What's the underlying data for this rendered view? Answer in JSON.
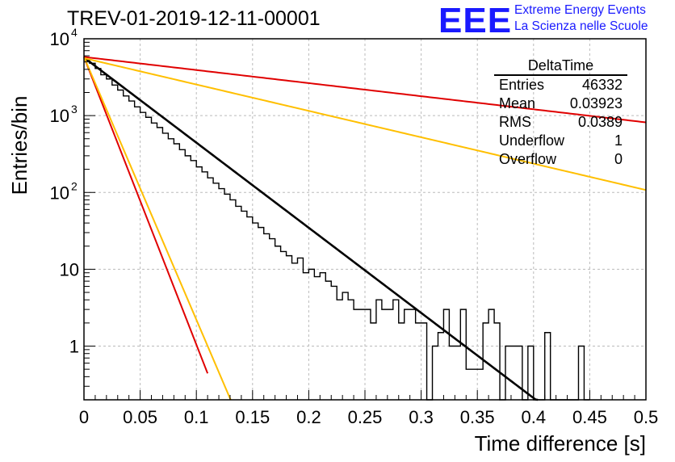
{
  "title": "TREV-01-2019-12-11-00001",
  "logo": {
    "mark": "EEE",
    "line1": "Extreme Energy Events",
    "line2": "La Scienza nelle Scuole",
    "color": "#1a1aff"
  },
  "stats_box": {
    "name": "DeltaTime",
    "rows": [
      {
        "label": "Entries",
        "value": "46332"
      },
      {
        "label": "Mean",
        "value": "0.03923"
      },
      {
        "label": "RMS",
        "value": "0.0389"
      },
      {
        "label": "Underflow",
        "value": "1"
      },
      {
        "label": "Overflow",
        "value": "0"
      }
    ]
  },
  "chart_data": {
    "type": "line",
    "title": "TREV-01-2019-12-11-00001",
    "xlabel": "Time difference [s]",
    "ylabel": "Entries/bin",
    "xlim": [
      0,
      0.5
    ],
    "ylim": [
      0.2,
      10000
    ],
    "yscale": "log",
    "grid": true,
    "legend": "top-right",
    "xticks": [
      "0",
      "0.05",
      "0.1",
      "0.15",
      "0.2",
      "0.25",
      "0.3",
      "0.35",
      "0.4",
      "0.45",
      "0.5"
    ],
    "yticks": [
      {
        "value": 1,
        "label": "1"
      },
      {
        "value": 10,
        "label": "10"
      },
      {
        "value": 100,
        "label": "10",
        "sup": "2"
      },
      {
        "value": 1000,
        "label": "10",
        "sup": "3"
      },
      {
        "value": 10000,
        "label": "10",
        "sup": "4"
      }
    ],
    "histogram": {
      "name": "DeltaTime",
      "color": "#000000",
      "bin_width": 0.005,
      "x_start": 0,
      "values": [
        5400,
        4800,
        4100,
        3400,
        3000,
        2500,
        2150,
        1800,
        1550,
        1300,
        1100,
        950,
        800,
        700,
        590,
        500,
        430,
        360,
        300,
        260,
        215,
        185,
        155,
        132,
        112,
        95,
        80,
        66,
        57,
        48,
        40,
        35,
        29,
        25,
        20,
        17,
        15,
        12,
        14,
        9,
        10,
        8,
        9,
        7,
        6,
        4,
        5,
        4,
        3,
        3,
        3,
        2,
        4,
        3,
        3,
        4,
        2,
        3,
        3,
        2,
        2,
        0,
        1,
        1.5,
        3,
        1,
        1,
        3,
        0.5,
        0.5,
        0.5,
        2,
        3,
        2,
        0.1,
        1,
        1,
        1,
        0.1,
        1,
        0.1,
        0.1,
        1.5,
        0.1,
        0.1,
        0.1,
        0.1,
        0.1,
        1,
        0.1
      ]
    },
    "fits": [
      {
        "color": "#000000",
        "y0": 5700,
        "tau": 0.0392,
        "x_range": [
          0,
          0.41
        ]
      },
      {
        "color": "#e00000",
        "y0": 5800,
        "tau": 0.0116,
        "x_range": [
          0,
          0.11
        ]
      },
      {
        "color": "#ffbf00",
        "y0": 5800,
        "tau": 0.0127,
        "x_range": [
          0,
          0.135
        ]
      },
      {
        "color": "#e00000",
        "y0": 5800,
        "tau": 0.255,
        "x_range": [
          0,
          0.5
        ]
      },
      {
        "color": "#ffbf00",
        "y0": 5600,
        "tau": 0.1265,
        "x_range": [
          0,
          0.5
        ]
      }
    ]
  }
}
